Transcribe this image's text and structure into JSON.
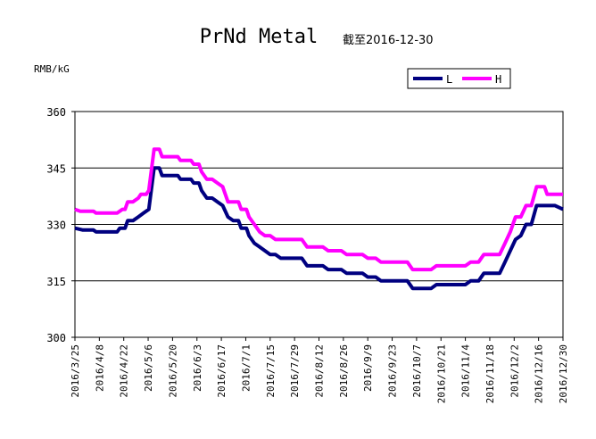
{
  "chart_data": {
    "type": "line",
    "title": "PrNd Metal",
    "subtitle": "截至2016-12-30",
    "ylabel": "RMB/kG",
    "xlabel": "",
    "ylim": [
      300,
      360
    ],
    "yticks": [
      "360",
      "345",
      "330",
      "315",
      "300"
    ],
    "grid": true,
    "legend_position": "top-right",
    "categories": [
      "2016/3/25",
      "2016/4/8",
      "2016/4/22",
      "2016/5/6",
      "2016/5/20",
      "2016/6/3",
      "2016/6/17",
      "2016/7/1",
      "2016/7/15",
      "2016/7/29",
      "2016/8/12",
      "2016/8/26",
      "2016/9/9",
      "2016/9/23",
      "2016/10/7",
      "2016/10/21",
      "2016/11/4",
      "2016/11/18",
      "2016/12/2",
      "2016/12/16",
      "2016/12/30"
    ],
    "series": [
      {
        "name": "L",
        "color": "#000080",
        "points": [
          [
            0,
            329
          ],
          [
            3,
            328.5
          ],
          [
            7,
            328.5
          ],
          [
            8,
            328
          ],
          [
            16,
            328
          ],
          [
            17,
            329
          ],
          [
            19,
            329
          ],
          [
            20,
            331
          ],
          [
            22,
            331
          ],
          [
            24,
            332
          ],
          [
            26,
            333
          ],
          [
            28,
            334
          ],
          [
            30,
            345
          ],
          [
            32,
            345
          ],
          [
            33,
            343
          ],
          [
            35,
            343
          ],
          [
            37,
            343
          ],
          [
            39,
            343
          ],
          [
            40,
            342
          ],
          [
            44,
            342
          ],
          [
            45,
            341
          ],
          [
            47,
            341
          ],
          [
            48,
            339
          ],
          [
            50,
            337
          ],
          [
            52,
            337
          ],
          [
            54,
            336
          ],
          [
            56,
            335
          ],
          [
            58,
            332
          ],
          [
            60,
            331
          ],
          [
            62,
            331
          ],
          [
            63,
            329
          ],
          [
            65,
            329
          ],
          [
            66,
            327
          ],
          [
            68,
            325
          ],
          [
            70,
            324
          ],
          [
            72,
            323
          ],
          [
            74,
            322
          ],
          [
            76,
            322
          ],
          [
            78,
            321
          ],
          [
            86,
            321
          ],
          [
            88,
            319
          ],
          [
            94,
            319
          ],
          [
            96,
            318
          ],
          [
            101,
            318
          ],
          [
            103,
            317
          ],
          [
            109,
            317
          ],
          [
            111,
            316
          ],
          [
            114,
            316
          ],
          [
            116,
            315
          ],
          [
            126,
            315
          ],
          [
            128,
            313
          ],
          [
            135,
            313
          ],
          [
            137,
            314
          ],
          [
            148,
            314
          ],
          [
            150,
            315
          ],
          [
            153,
            315
          ],
          [
            155,
            317
          ],
          [
            161,
            317
          ],
          [
            163,
            320
          ],
          [
            165,
            323
          ],
          [
            167,
            326
          ],
          [
            169,
            327
          ],
          [
            171,
            330
          ],
          [
            173,
            330
          ],
          [
            175,
            335
          ],
          [
            178,
            335
          ],
          [
            182,
            335
          ],
          [
            185,
            334
          ]
        ]
      },
      {
        "name": "H",
        "color": "#FF00FF",
        "points": [
          [
            0,
            334
          ],
          [
            2,
            333.5
          ],
          [
            7,
            333.5
          ],
          [
            8,
            333
          ],
          [
            16,
            333
          ],
          [
            18,
            334
          ],
          [
            19,
            334
          ],
          [
            20,
            336
          ],
          [
            22,
            336
          ],
          [
            24,
            337
          ],
          [
            25,
            338
          ],
          [
            27,
            338
          ],
          [
            28,
            339
          ],
          [
            30,
            350
          ],
          [
            32,
            350
          ],
          [
            33,
            348
          ],
          [
            35,
            348
          ],
          [
            37,
            348
          ],
          [
            39,
            348
          ],
          [
            40,
            347
          ],
          [
            44,
            347
          ],
          [
            45,
            346
          ],
          [
            47,
            346
          ],
          [
            48,
            344
          ],
          [
            50,
            342
          ],
          [
            52,
            342
          ],
          [
            54,
            341
          ],
          [
            56,
            340
          ],
          [
            58,
            336
          ],
          [
            60,
            336
          ],
          [
            62,
            336
          ],
          [
            63,
            334
          ],
          [
            65,
            334
          ],
          [
            66,
            332
          ],
          [
            68,
            330
          ],
          [
            70,
            328
          ],
          [
            72,
            327
          ],
          [
            74,
            327
          ],
          [
            76,
            326
          ],
          [
            86,
            326
          ],
          [
            88,
            324
          ],
          [
            94,
            324
          ],
          [
            96,
            323
          ],
          [
            101,
            323
          ],
          [
            103,
            322
          ],
          [
            109,
            322
          ],
          [
            111,
            321
          ],
          [
            114,
            321
          ],
          [
            116,
            320
          ],
          [
            126,
            320
          ],
          [
            128,
            318
          ],
          [
            135,
            318
          ],
          [
            137,
            319
          ],
          [
            148,
            319
          ],
          [
            150,
            320
          ],
          [
            153,
            320
          ],
          [
            155,
            322
          ],
          [
            161,
            322
          ],
          [
            163,
            325
          ],
          [
            165,
            328
          ],
          [
            167,
            332
          ],
          [
            169,
            332
          ],
          [
            171,
            335
          ],
          [
            173,
            335
          ],
          [
            175,
            340
          ],
          [
            178,
            340
          ],
          [
            179,
            338
          ],
          [
            185,
            338
          ]
        ]
      }
    ]
  }
}
